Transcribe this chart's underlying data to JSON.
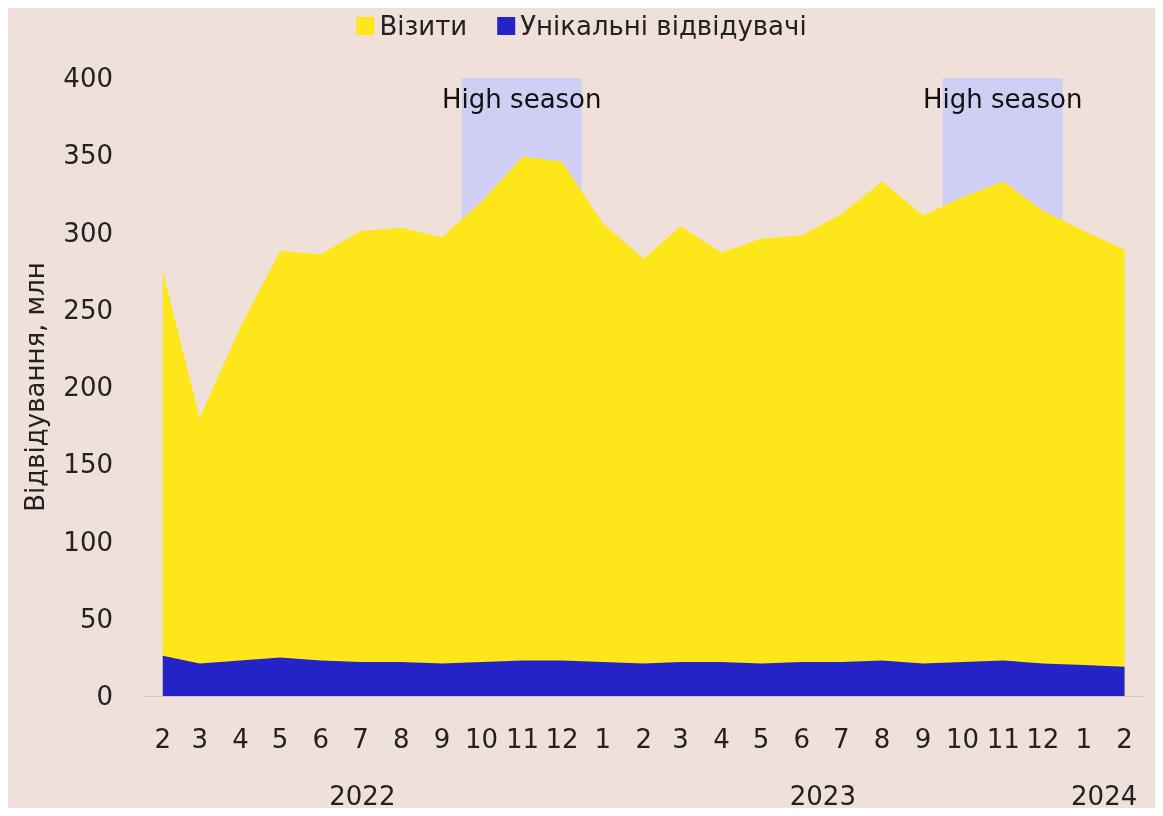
{
  "chart_data": {
    "type": "area",
    "ylabel": "Відвідування, млн",
    "x": [
      "2022-02",
      "2022-03",
      "2022-04",
      "2022-05",
      "2022-06",
      "2022-07",
      "2022-08",
      "2022-09",
      "2022-10",
      "2022-11",
      "2022-12",
      "2023-01",
      "2023-02",
      "2023-03",
      "2023-04",
      "2023-05",
      "2023-06",
      "2023-07",
      "2023-08",
      "2023-09",
      "2023-10",
      "2023-11",
      "2023-12",
      "2024-01",
      "2024-02"
    ],
    "xticks": [
      {
        "value": "2022-02",
        "label": "2"
      },
      {
        "value": "2022-03",
        "label": "3"
      },
      {
        "value": "2022-04",
        "label": "4"
      },
      {
        "value": "2022-05",
        "label": "5"
      },
      {
        "value": "2022-06",
        "label": "6"
      },
      {
        "value": "2022-07",
        "label": "7"
      },
      {
        "value": "2022-08",
        "label": "8"
      },
      {
        "value": "2022-09",
        "label": "9"
      },
      {
        "value": "2022-10",
        "label": "10"
      },
      {
        "value": "2022-11",
        "label": "11"
      },
      {
        "value": "2022-12",
        "label": "12"
      },
      {
        "value": "2023-01",
        "label": "1"
      },
      {
        "value": "2023-02",
        "label": "2"
      },
      {
        "value": "2023-03",
        "label": "3"
      },
      {
        "value": "2023-04",
        "label": "4"
      },
      {
        "value": "2023-05",
        "label": "5"
      },
      {
        "value": "2023-06",
        "label": "6"
      },
      {
        "value": "2023-07",
        "label": "7"
      },
      {
        "value": "2023-08",
        "label": "8"
      },
      {
        "value": "2023-09",
        "label": "9"
      },
      {
        "value": "2023-10",
        "label": "10"
      },
      {
        "value": "2023-11",
        "label": "11"
      },
      {
        "value": "2023-12",
        "label": "12"
      },
      {
        "value": "2024-01",
        "label": "1"
      },
      {
        "value": "2024-02",
        "label": "2"
      }
    ],
    "series": [
      {
        "name": "Візити",
        "color": "#fde61a",
        "values": [
          275,
          180,
          239,
          288,
          286,
          301,
          303,
          297,
          320,
          349,
          346,
          306,
          283,
          304,
          287,
          296,
          298,
          312,
          333,
          311,
          323,
          333,
          314,
          301,
          289
        ]
      },
      {
        "name": "Унікальні відвідувачі",
        "color": "#2323c8",
        "values": [
          26,
          21,
          23,
          25,
          23,
          22,
          22,
          21,
          22,
          23,
          23,
          22,
          21,
          22,
          22,
          21,
          22,
          22,
          23,
          21,
          22,
          23,
          21,
          20,
          19
        ]
      }
    ],
    "ylim": [
      0,
      400
    ],
    "yticks": [
      0,
      50,
      100,
      150,
      200,
      250,
      300,
      350,
      400
    ],
    "xlim": [
      "2022-01-17",
      "2024-02-15"
    ],
    "bands": [
      {
        "axis": "x",
        "from": "2022-09-16",
        "to": "2022-12-16",
        "label": "High season",
        "color": "#cfcff5"
      },
      {
        "axis": "x",
        "from": "2023-09-16",
        "to": "2023-12-16",
        "label": "High season",
        "color": "#cfcff5"
      }
    ],
    "annotations": [
      "2022",
      "2023",
      "2024"
    ],
    "legend": "top"
  }
}
